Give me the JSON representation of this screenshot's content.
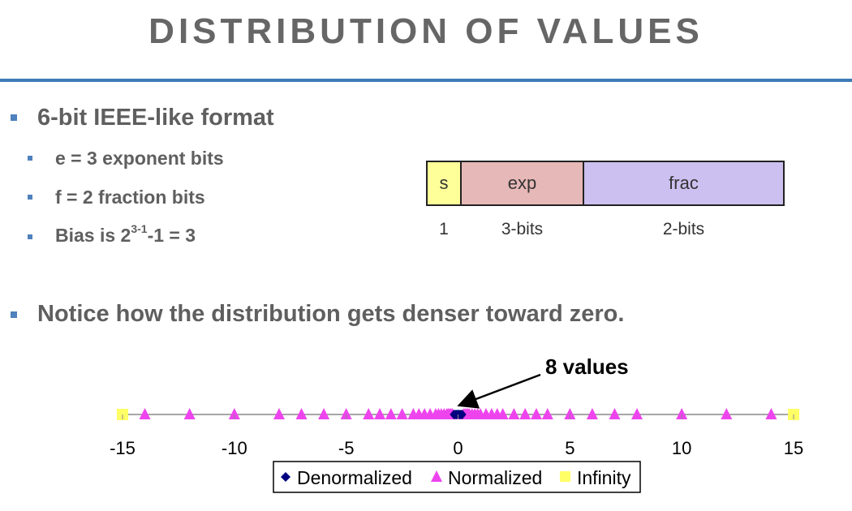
{
  "title": "DISTRIBUTION OF VALUES",
  "bullets": {
    "main1": "6-bit IEEE-like format",
    "sub1": "e = 3 exponent bits",
    "sub2": "f = 2 fraction bits",
    "sub3_prefix": "Bias is 2",
    "sub3_sup": "3-1",
    "sub3_suffix": "-1 = 3",
    "main2": "Notice how the distribution gets denser toward zero."
  },
  "format": {
    "fields": [
      {
        "name": "s",
        "bits": "1",
        "color": "#ffff99"
      },
      {
        "name": "exp",
        "bits": "3-bits",
        "color": "#e6b8b7"
      },
      {
        "name": "frac",
        "bits": "2-bits",
        "color": "#ccc0f0"
      }
    ]
  },
  "annotation": "8 values",
  "chart_data": {
    "type": "scatter",
    "xlim": [
      -15,
      15
    ],
    "x_ticks": [
      "-15",
      "-10",
      "-5",
      "0",
      "5",
      "10",
      "15"
    ],
    "legend_placement": "bottom",
    "series": [
      {
        "name": "Denormalized",
        "marker": "diamond",
        "color": "#000080",
        "x": [
          -0.1875,
          -0.125,
          -0.0625,
          0,
          0,
          0.0625,
          0.125,
          0.1875
        ]
      },
      {
        "name": "Normalized",
        "marker": "triangle",
        "color": "#ee44ee",
        "x": [
          -14,
          -12,
          -10,
          -8,
          -7,
          -6,
          -5,
          -4,
          -3.5,
          -3,
          -2.5,
          -2,
          -1.75,
          -1.5,
          -1.25,
          -1,
          -0.875,
          -0.75,
          -0.625,
          -0.5,
          -0.4375,
          -0.375,
          -0.3125,
          -0.25,
          0.25,
          0.3125,
          0.375,
          0.4375,
          0.5,
          0.625,
          0.75,
          0.875,
          1,
          1.25,
          1.5,
          1.75,
          2,
          2.5,
          3,
          3.5,
          4,
          5,
          6,
          7,
          8,
          10,
          12,
          14
        ]
      },
      {
        "name": "Infinity",
        "marker": "square",
        "color": "#ffff66",
        "x": [
          -15,
          15
        ]
      }
    ]
  }
}
